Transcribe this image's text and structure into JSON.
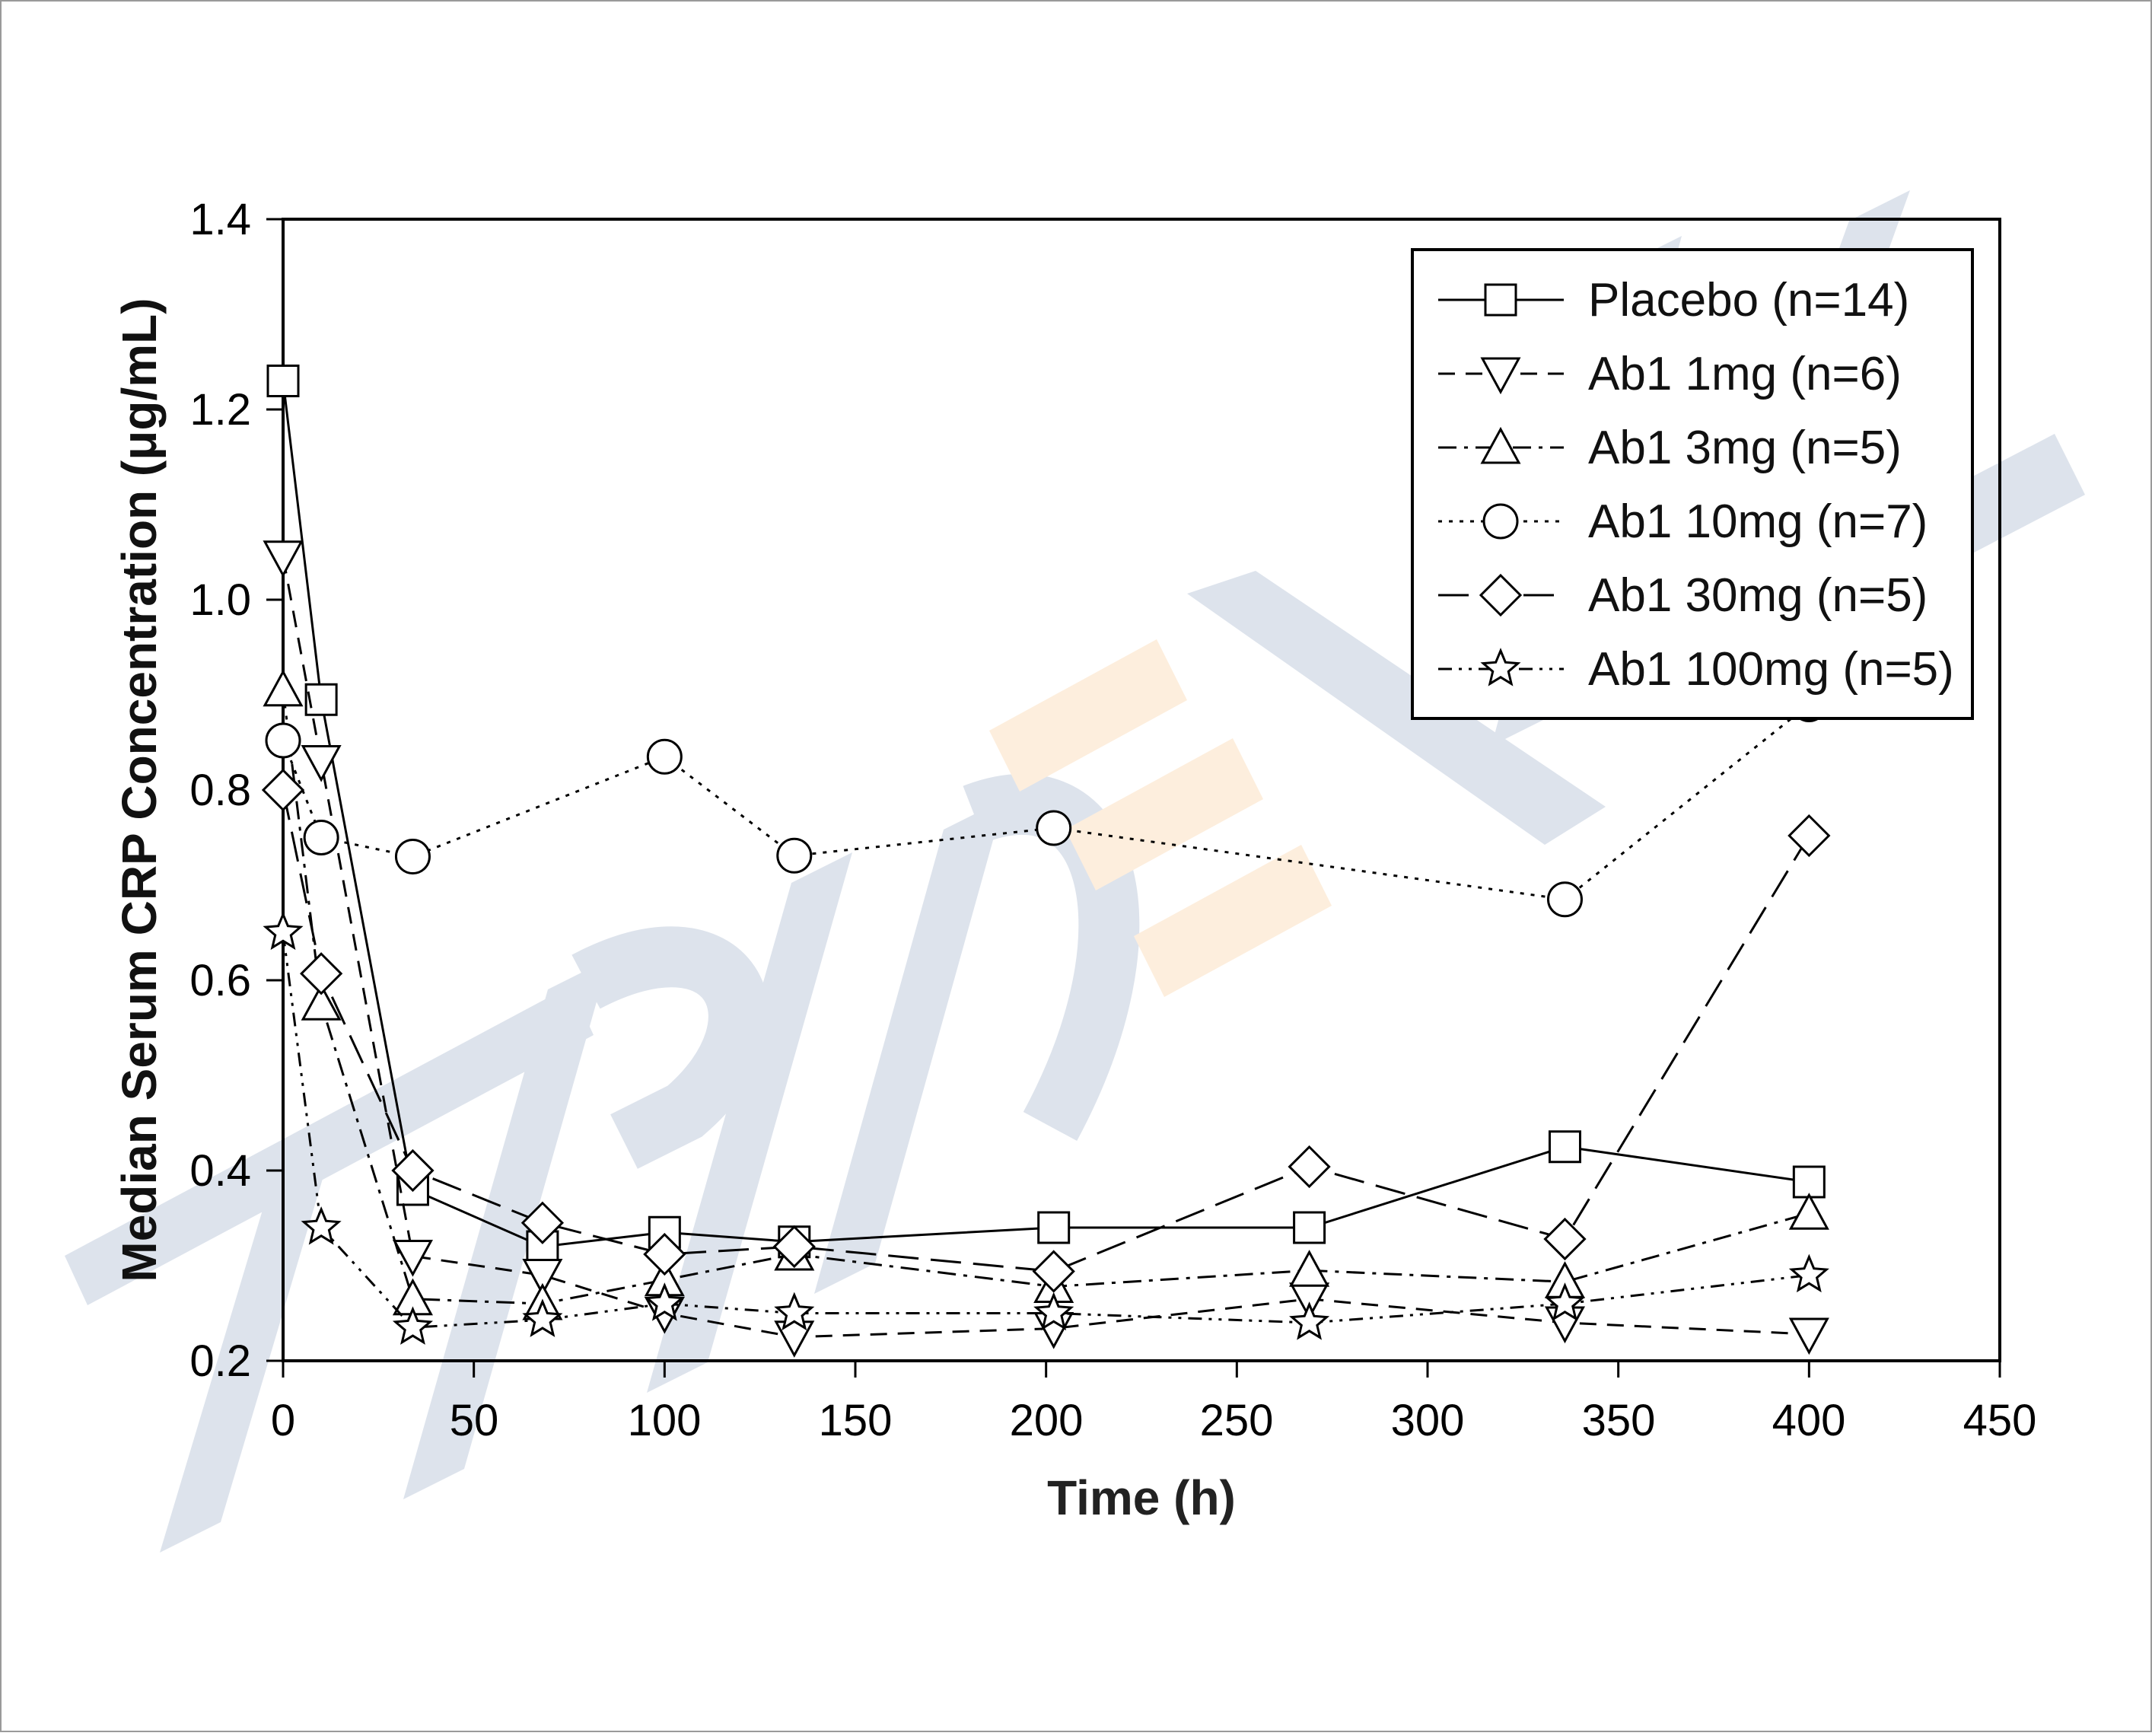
{
  "chart_data": {
    "type": "line",
    "xlabel": "Time (h)",
    "ylabel": "Median Serum CRP Concentration (μg/mL)",
    "xlim": [
      0,
      450
    ],
    "ylim": [
      0.2,
      1.4
    ],
    "xticks": [
      0,
      50,
      100,
      150,
      200,
      250,
      300,
      350,
      400,
      450
    ],
    "yticks": [
      0.2,
      0.4,
      0.6,
      0.8,
      1.0,
      1.2,
      1.4
    ],
    "xtick_labels": [
      "0",
      "50",
      "100",
      "150",
      "200",
      "250",
      "300",
      "350",
      "400",
      "450"
    ],
    "ytick_labels": [
      "0.2",
      "0.4",
      "0.6",
      "0.8",
      "1.0",
      "1.2",
      "1.4"
    ],
    "grid": false,
    "legend_position": "top-right",
    "series": [
      {
        "name": "Placebo (n=14)",
        "marker": "square",
        "dash": "solid",
        "x": [
          0,
          10,
          34,
          68,
          100,
          134,
          202,
          269,
          336,
          400
        ],
        "y": [
          1.23,
          0.895,
          0.38,
          0.32,
          0.335,
          0.325,
          0.34,
          0.34,
          0.425,
          0.388
        ]
      },
      {
        "name": "Ab1 1mg (n=6)",
        "marker": "triangle-down",
        "dash": "dashed",
        "x": [
          0,
          10,
          34,
          68,
          100,
          134,
          202,
          269,
          336,
          400
        ],
        "y": [
          1.045,
          0.83,
          0.31,
          0.29,
          0.25,
          0.225,
          0.234,
          0.265,
          0.24,
          0.228
        ]
      },
      {
        "name": "Ab1 3mg (n=5)",
        "marker": "triangle-up",
        "dash": "dashdot",
        "x": [
          0,
          10,
          34,
          68,
          100,
          134,
          202,
          269,
          336,
          400
        ],
        "y": [
          0.905,
          0.575,
          0.265,
          0.26,
          0.285,
          0.312,
          0.278,
          0.295,
          0.283,
          0.355
        ]
      },
      {
        "name": "Ab1 10mg (n=7)",
        "marker": "circle",
        "dash": "dotted",
        "x": [
          0,
          10,
          34,
          68,
          100,
          134,
          202,
          269,
          336,
          400
        ],
        "y": [
          0.852,
          0.75,
          0.73,
          null,
          0.835,
          0.731,
          0.76,
          null,
          0.685,
          0.89
        ]
      },
      {
        "name": "Ab1 30mg (n=5)",
        "marker": "diamond",
        "dash": "longdash",
        "x": [
          0,
          10,
          34,
          68,
          100,
          134,
          202,
          269,
          336,
          400
        ],
        "y": [
          0.8,
          0.607,
          0.4,
          0.345,
          0.312,
          0.32,
          0.294,
          0.404,
          0.328,
          0.752
        ]
      },
      {
        "name": "Ab1 100mg (n=5)",
        "marker": "star",
        "dash": "dashdotdot",
        "x": [
          0,
          10,
          34,
          68,
          100,
          134,
          202,
          269,
          336,
          400
        ],
        "y": [
          0.65,
          0.34,
          0.235,
          0.243,
          0.26,
          0.25,
          0.25,
          0.24,
          0.26,
          0.29
        ]
      }
    ]
  },
  "watermark": {
    "text": "TRIDENT",
    "color": "#dde3ec",
    "accent_color": "#fdeedd"
  }
}
